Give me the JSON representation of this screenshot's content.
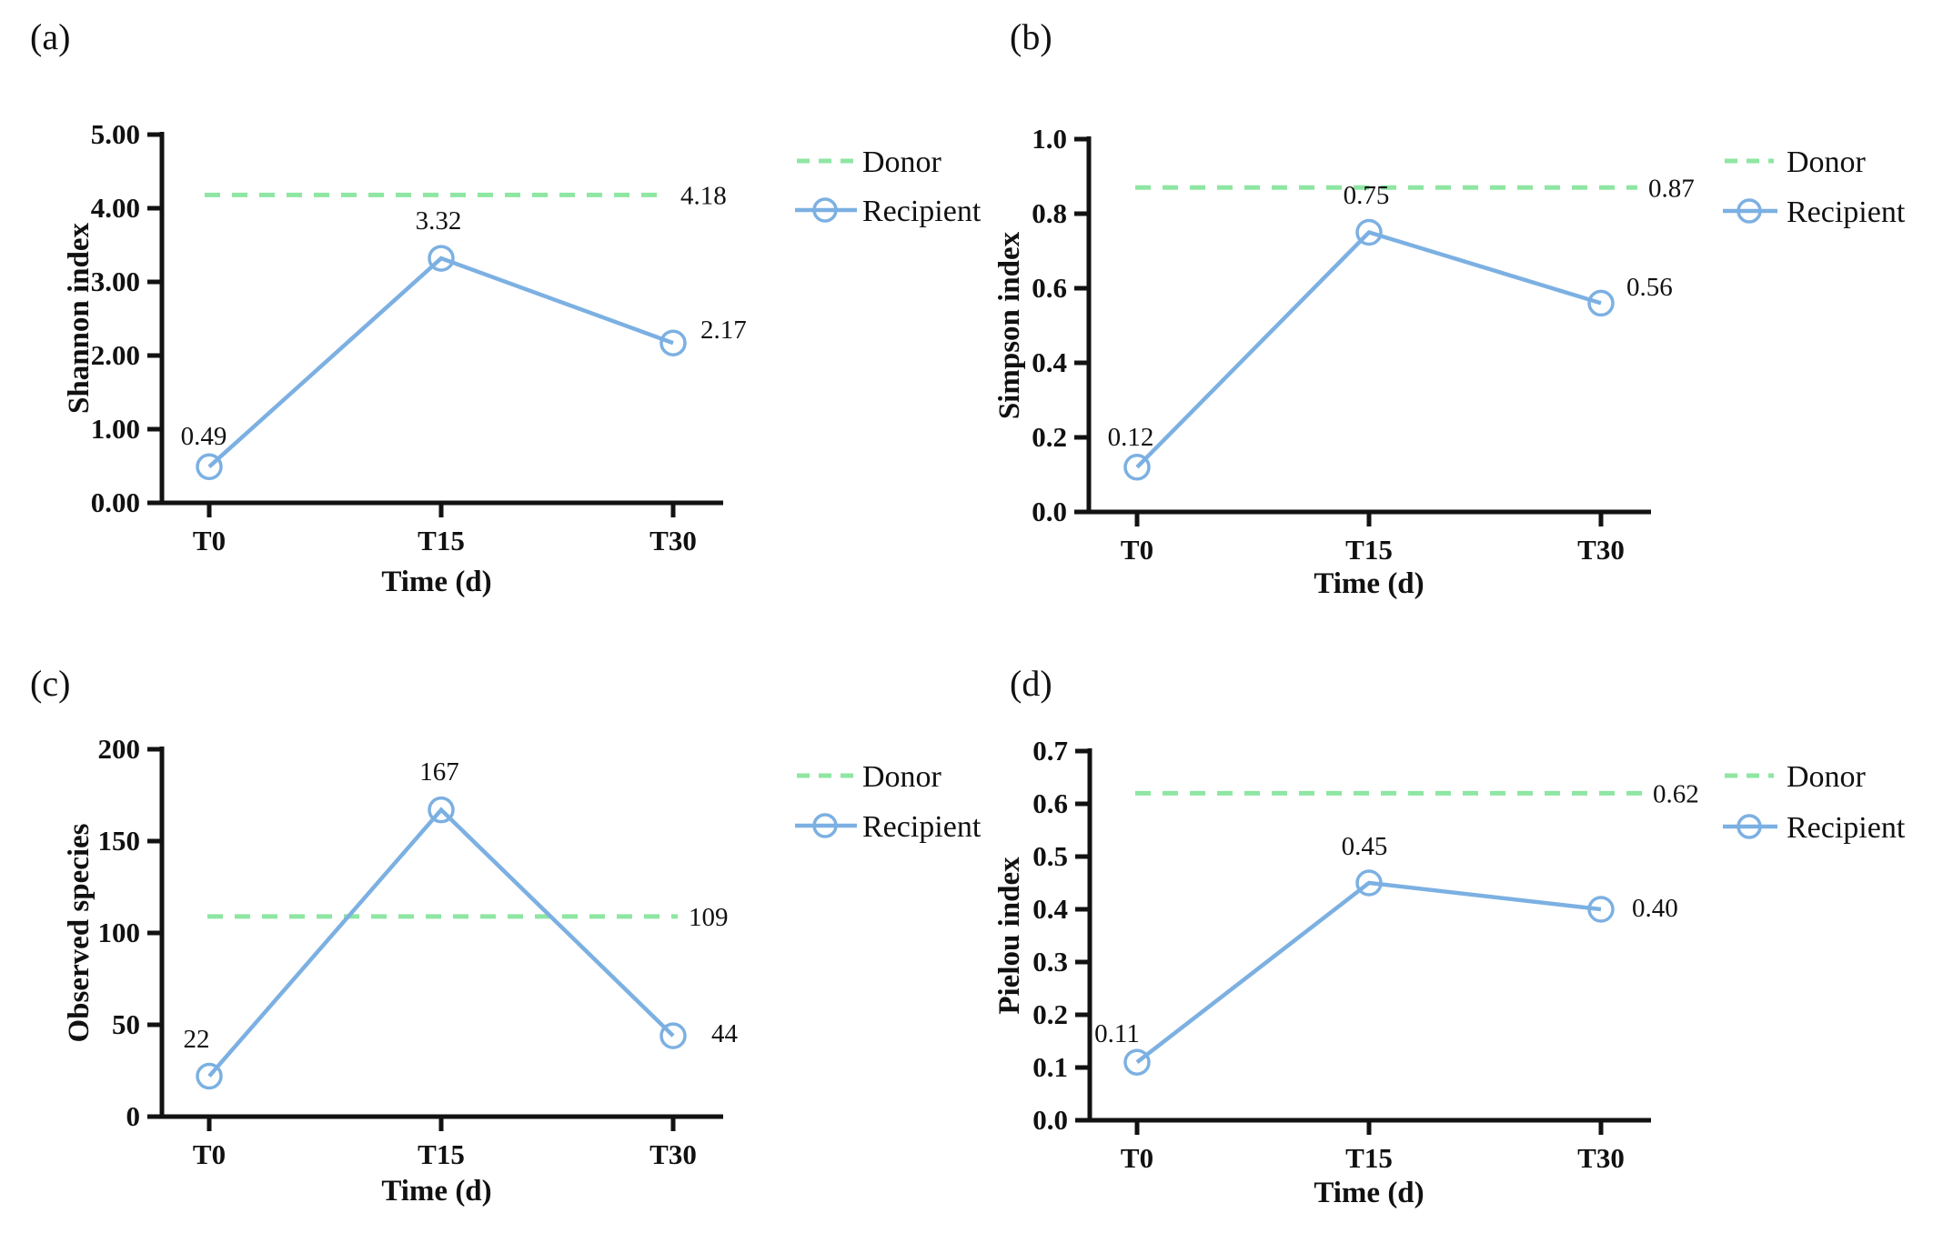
{
  "figure": {
    "background": "#ffffff",
    "colors": {
      "donor_line": "#8ee6a2",
      "recipient_line": "#7cb0e2",
      "axis": "#121212",
      "text": "#111111"
    },
    "legend": {
      "donor_label": "Donor",
      "recipient_label": "Recipient"
    }
  },
  "chart_data": [
    {
      "type": "line",
      "panel_letter": "(a)",
      "ylabel": "Shannon index",
      "xlabel": "Time (d)",
      "categories": [
        "T0",
        "T15",
        "T30"
      ],
      "ylim": [
        0,
        5
      ],
      "yticks": [
        "0.00",
        "1.00",
        "2.00",
        "3.00",
        "4.00",
        "5.00"
      ],
      "grid": false,
      "legend_position": "right",
      "series": [
        {
          "name": "Donor",
          "style": "dashed-horizontal",
          "value": 4.18,
          "label": "4.18"
        },
        {
          "name": "Recipient",
          "style": "line-open-circle",
          "values": [
            0.49,
            3.32,
            2.17
          ],
          "labels": [
            "0.49",
            "3.32",
            "2.17"
          ]
        }
      ]
    },
    {
      "type": "line",
      "panel_letter": "(b)",
      "ylabel": "Simpson index",
      "xlabel": "Time (d)",
      "categories": [
        "T0",
        "T15",
        "T30"
      ],
      "ylim": [
        0,
        1.0
      ],
      "yticks": [
        "0.0",
        "0.2",
        "0.4",
        "0.6",
        "0.8",
        "1.0"
      ],
      "grid": false,
      "legend_position": "right",
      "series": [
        {
          "name": "Donor",
          "style": "dashed-horizontal",
          "value": 0.87,
          "label": "0.87"
        },
        {
          "name": "Recipient",
          "style": "line-open-circle",
          "values": [
            0.12,
            0.75,
            0.56
          ],
          "labels": [
            "0.12",
            "0.75",
            "0.56"
          ]
        }
      ]
    },
    {
      "type": "line",
      "panel_letter": "(c)",
      "ylabel": "Observed species",
      "xlabel": "Time (d)",
      "categories": [
        "T0",
        "T15",
        "T30"
      ],
      "ylim": [
        0,
        200
      ],
      "yticks": [
        "0",
        "50",
        "100",
        "150",
        "200"
      ],
      "grid": false,
      "legend_position": "right",
      "series": [
        {
          "name": "Donor",
          "style": "dashed-horizontal",
          "value": 109,
          "label": "109"
        },
        {
          "name": "Recipient",
          "style": "line-open-circle",
          "values": [
            22,
            167,
            44
          ],
          "labels": [
            "22",
            "167",
            "44"
          ]
        }
      ]
    },
    {
      "type": "line",
      "panel_letter": "(d)",
      "ylabel": "Pielou index",
      "xlabel": "Time (d)",
      "categories": [
        "T0",
        "T15",
        "T30"
      ],
      "ylim": [
        0,
        0.7
      ],
      "yticks": [
        "0.0",
        "0.1",
        "0.2",
        "0.3",
        "0.4",
        "0.5",
        "0.6",
        "0.7"
      ],
      "grid": false,
      "legend_position": "right",
      "series": [
        {
          "name": "Donor",
          "style": "dashed-horizontal",
          "value": 0.62,
          "label": "0.62"
        },
        {
          "name": "Recipient",
          "style": "line-open-circle",
          "values": [
            0.11,
            0.45,
            0.4
          ],
          "labels": [
            "0.11",
            "0.45",
            "0.40"
          ]
        }
      ]
    }
  ]
}
